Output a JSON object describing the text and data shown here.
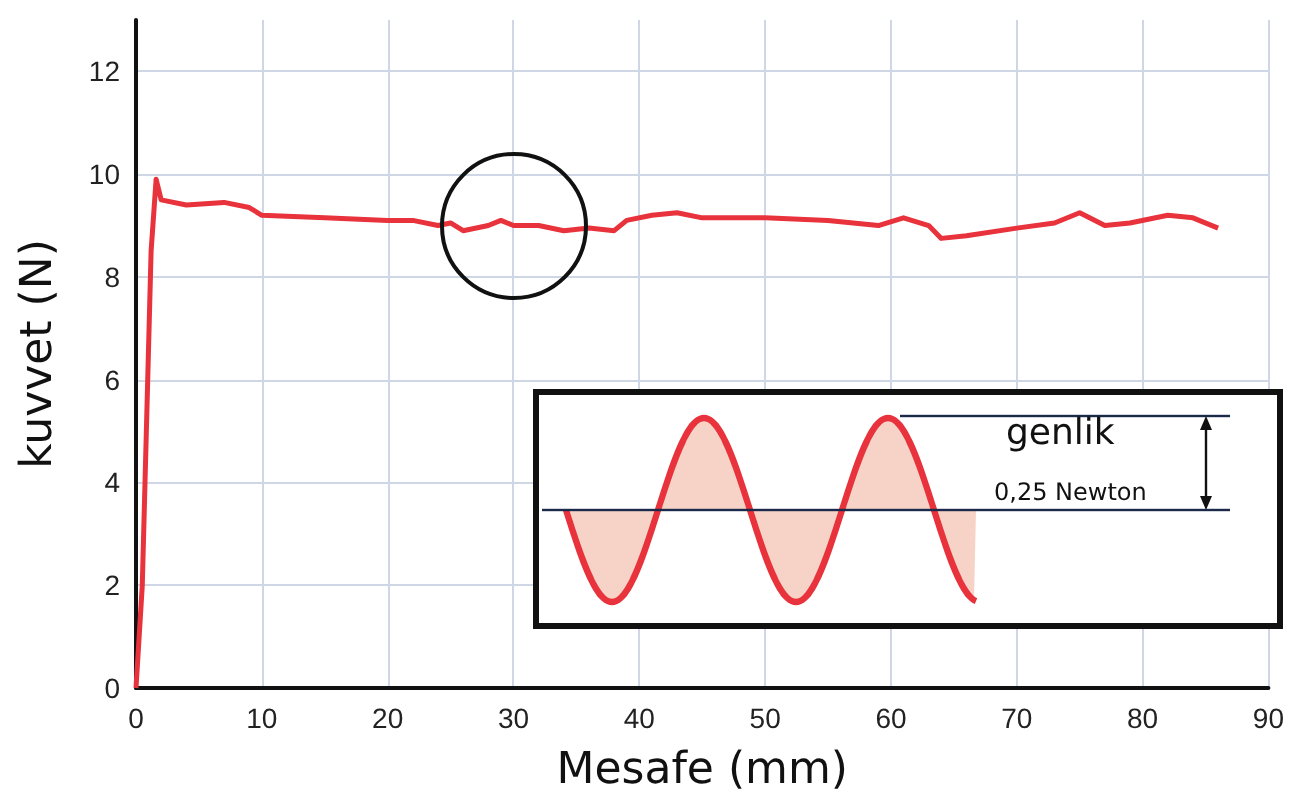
{
  "chart_data": {
    "type": "line",
    "xlabel": "Mesafe (mm)",
    "ylabel": "kuvvet (N)",
    "series": [
      {
        "color": "#e8323c",
        "x": [
          0,
          0.5,
          1.2,
          1.6,
          2,
          4,
          7,
          9,
          10,
          15,
          20,
          22,
          24,
          25,
          26,
          28,
          29,
          30,
          32,
          34,
          36,
          38,
          39,
          41,
          43,
          45,
          50,
          55,
          59,
          61,
          63,
          64,
          66,
          70,
          73,
          75,
          77,
          79,
          82,
          84,
          86
        ],
        "values": [
          0,
          2,
          8.5,
          9.9,
          9.5,
          9.4,
          9.45,
          9.35,
          9.2,
          9.15,
          9.1,
          9.1,
          9.0,
          9.05,
          8.9,
          9.0,
          9.1,
          9.0,
          9.0,
          8.9,
          8.95,
          8.9,
          9.1,
          9.2,
          9.25,
          9.15,
          9.15,
          9.1,
          9.0,
          9.15,
          9.0,
          8.75,
          8.8,
          8.95,
          9.05,
          9.25,
          9.0,
          9.05,
          9.2,
          9.15,
          8.95
        ]
      }
    ],
    "xlim": [
      0,
      90
    ],
    "xticks": [
      0,
      10,
      20,
      30,
      40,
      50,
      60,
      70,
      80,
      90
    ],
    "ylim": [
      0,
      13
    ],
    "yticks": [
      0,
      2,
      4,
      6,
      8,
      10,
      12
    ],
    "grid": true,
    "marker": "none",
    "line_style": "solid",
    "annotations": [
      "genlik",
      "0,25 Newton"
    ]
  }
}
